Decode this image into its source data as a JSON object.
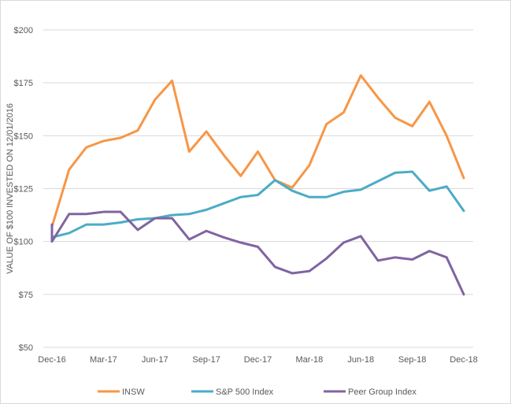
{
  "chart_data": {
    "type": "line",
    "title": "",
    "xlabel": "",
    "ylabel": "VALUE OF $100 INVESTED ON 12/01/2016",
    "x_tick_labels": [
      "Dec-16",
      "Mar-17",
      "Jun-17",
      "Sep-17",
      "Dec-17",
      "Mar-18",
      "Jun-18",
      "Sep-18",
      "Dec-18"
    ],
    "y_tick_labels": [
      "$50",
      "$75",
      "$100",
      "$125",
      "$150",
      "$175",
      "$200"
    ],
    "ylim": [
      50,
      200
    ],
    "y_ticks": [
      50,
      75,
      100,
      125,
      150,
      175,
      200
    ],
    "grid": "horizontal",
    "legend_position": "bottom",
    "x": [
      "Dec-16",
      "Jan-17",
      "Feb-17",
      "Mar-17",
      "Apr-17",
      "May-17",
      "Jun-17",
      "Jul-17",
      "Aug-17",
      "Sep-17",
      "Oct-17",
      "Nov-17",
      "Dec-17",
      "Jan-18",
      "Feb-18",
      "Mar-18",
      "Apr-18",
      "May-18",
      "Jun-18",
      "Jul-18",
      "Aug-18",
      "Sep-18",
      "Oct-18",
      "Nov-18",
      "Dec-18"
    ],
    "series": [
      {
        "name": "INSW",
        "color": "#f79646",
        "values": [
          107,
          134,
          144.5,
          147.5,
          149,
          152.5,
          167,
          176,
          142.5,
          152,
          141,
          131,
          142.5,
          129,
          125.5,
          136,
          155.5,
          161,
          178.5,
          168,
          158.5,
          154.5,
          166,
          150,
          130
        ]
      },
      {
        "name": "S&P 500 Index",
        "color": "#4bacc6",
        "values": [
          102,
          104,
          108,
          108,
          109,
          110.5,
          111,
          112.5,
          113,
          115,
          118,
          121,
          122,
          129,
          124,
          121,
          121,
          123.5,
          124.5,
          128.5,
          132.5,
          133,
          124,
          126,
          114.5
        ]
      },
      {
        "name": "Peer Group Index",
        "color": "#8064a2",
        "values": [
          100,
          113,
          113,
          114,
          114,
          105.5,
          111,
          111,
          101,
          105,
          102,
          99.5,
          97.5,
          88,
          85,
          86,
          92,
          99.5,
          102.5,
          91,
          92.5,
          91.5,
          95.5,
          92.5,
          75
        ]
      }
    ],
    "extra_start_points": [
      {
        "series": "Peer Group Index",
        "value": 108
      }
    ]
  }
}
